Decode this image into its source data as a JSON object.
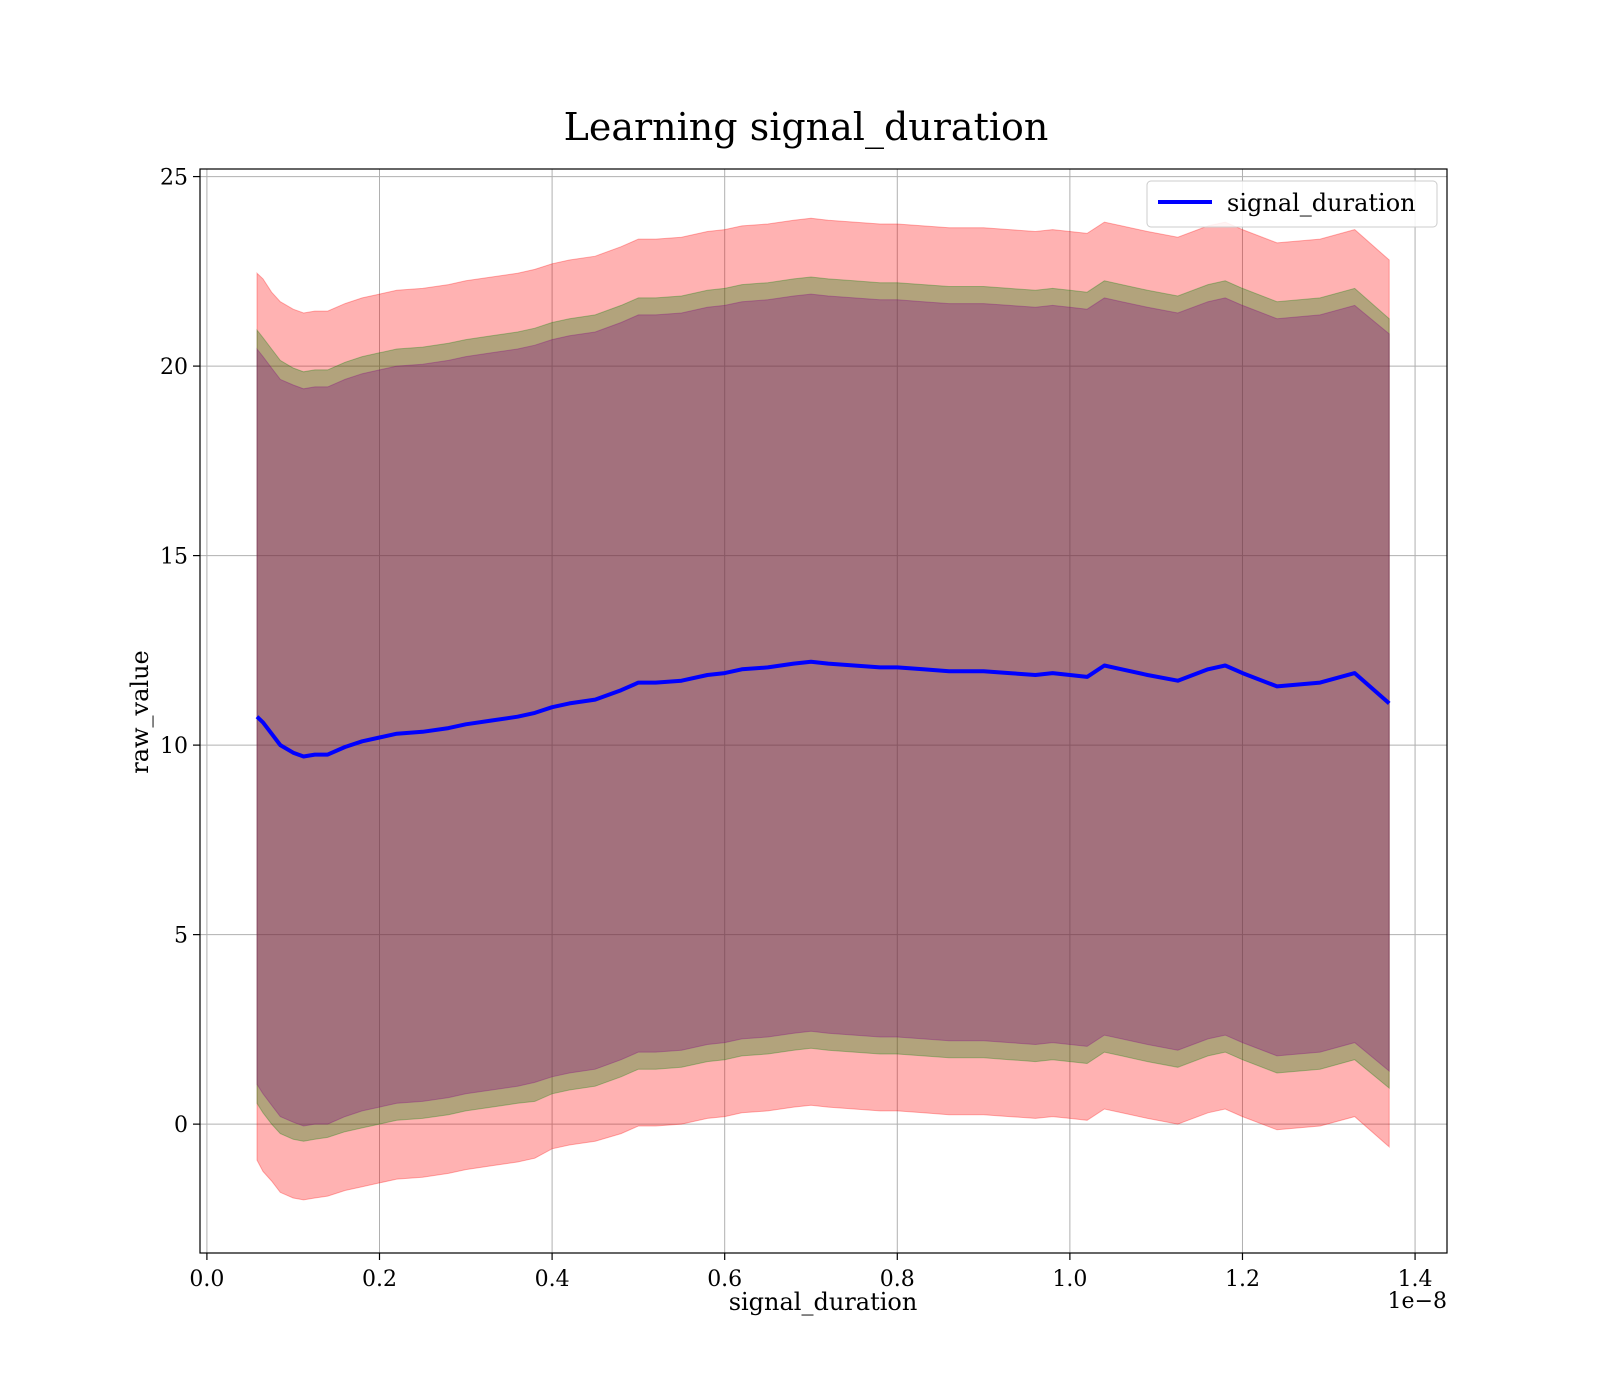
{
  "chart_data": {
    "type": "line",
    "title": "Learning signal_duration",
    "xlabel": "signal_duration",
    "ylabel": "raw_value",
    "x_offset_text": "1e−8",
    "xlim": [
      -0.008,
      1.437
    ],
    "ylim": [
      -3.4,
      25.2
    ],
    "xticks": [
      0.0,
      0.2,
      0.4,
      0.6,
      0.8,
      1.0,
      1.2,
      1.4
    ],
    "xtick_labels": [
      "0.0",
      "0.2",
      "0.4",
      "0.6",
      "0.8",
      "1.0",
      "1.2",
      "1.4"
    ],
    "yticks": [
      0,
      5,
      10,
      15,
      20,
      25
    ],
    "ytick_labels": [
      "0",
      "5",
      "10",
      "15",
      "20",
      "25"
    ],
    "grid": true,
    "legend": {
      "position": "top-right",
      "entries": [
        "signal_duration"
      ]
    },
    "series": [
      {
        "name": "signal_duration",
        "color": "#0000ff",
        "x": [
          0.058,
          0.065,
          0.075,
          0.085,
          0.1,
          0.112,
          0.125,
          0.14,
          0.16,
          0.18,
          0.2,
          0.22,
          0.25,
          0.28,
          0.3,
          0.33,
          0.36,
          0.38,
          0.4,
          0.42,
          0.45,
          0.48,
          0.5,
          0.52,
          0.55,
          0.58,
          0.6,
          0.62,
          0.65,
          0.68,
          0.7,
          0.72,
          0.75,
          0.78,
          0.8,
          0.83,
          0.86,
          0.9,
          0.93,
          0.96,
          0.98,
          1.0,
          1.02,
          1.04,
          1.06,
          1.09,
          1.125,
          1.16,
          1.18,
          1.2,
          1.24,
          1.29,
          1.33,
          1.37
        ],
        "values": [
          10.75,
          10.6,
          10.3,
          10.0,
          9.8,
          9.7,
          9.75,
          9.75,
          9.95,
          10.1,
          10.2,
          10.3,
          10.35,
          10.45,
          10.55,
          10.65,
          10.75,
          10.85,
          11.0,
          11.1,
          11.2,
          11.45,
          11.65,
          11.65,
          11.7,
          11.85,
          11.9,
          12.0,
          12.05,
          12.15,
          12.2,
          12.15,
          12.1,
          12.05,
          12.05,
          12.0,
          11.95,
          11.95,
          11.9,
          11.85,
          11.9,
          11.85,
          11.8,
          12.1,
          12.0,
          11.85,
          11.7,
          12.0,
          12.1,
          11.9,
          11.55,
          11.65,
          11.9,
          11.1
        ]
      }
    ],
    "bands": [
      {
        "color": "#ff0000",
        "opacity": 0.3,
        "lower": [
          -0.95,
          -1.25,
          -1.5,
          -1.8,
          -1.95,
          -2.0,
          -1.95,
          -1.9,
          -1.75,
          -1.65,
          -1.55,
          -1.45,
          -1.4,
          -1.3,
          -1.2,
          -1.1,
          -1.0,
          -0.9,
          -0.65,
          -0.55,
          -0.45,
          -0.25,
          -0.05,
          -0.05,
          0.0,
          0.15,
          0.2,
          0.3,
          0.35,
          0.45,
          0.5,
          0.45,
          0.4,
          0.35,
          0.35,
          0.3,
          0.25,
          0.25,
          0.2,
          0.15,
          0.2,
          0.15,
          0.1,
          0.4,
          0.3,
          0.15,
          0.0,
          0.3,
          0.4,
          0.2,
          -0.15,
          -0.05,
          0.2,
          -0.6
        ],
        "upper": [
          22.45,
          22.3,
          21.95,
          21.7,
          21.5,
          21.4,
          21.45,
          21.45,
          21.65,
          21.8,
          21.9,
          22.0,
          22.05,
          22.15,
          22.25,
          22.35,
          22.45,
          22.55,
          22.7,
          22.8,
          22.9,
          23.15,
          23.35,
          23.35,
          23.4,
          23.55,
          23.6,
          23.7,
          23.75,
          23.85,
          23.9,
          23.85,
          23.8,
          23.75,
          23.75,
          23.7,
          23.65,
          23.65,
          23.6,
          23.55,
          23.6,
          23.55,
          23.5,
          23.8,
          23.7,
          23.55,
          23.4,
          23.7,
          23.8,
          23.6,
          23.25,
          23.35,
          23.6,
          22.8
        ]
      },
      {
        "color": "#008000",
        "opacity": 0.3,
        "lower": [
          0.55,
          0.3,
          0.0,
          -0.25,
          -0.4,
          -0.45,
          -0.4,
          -0.35,
          -0.2,
          -0.1,
          0.0,
          0.1,
          0.15,
          0.25,
          0.35,
          0.45,
          0.55,
          0.6,
          0.8,
          0.9,
          1.0,
          1.25,
          1.45,
          1.45,
          1.5,
          1.65,
          1.7,
          1.8,
          1.85,
          1.95,
          2.0,
          1.95,
          1.9,
          1.85,
          1.85,
          1.8,
          1.75,
          1.75,
          1.7,
          1.65,
          1.7,
          1.65,
          1.6,
          1.9,
          1.8,
          1.65,
          1.5,
          1.8,
          1.9,
          1.7,
          1.35,
          1.45,
          1.7,
          0.95
        ],
        "upper": [
          20.95,
          20.75,
          20.45,
          20.15,
          19.95,
          19.85,
          19.9,
          19.9,
          20.1,
          20.25,
          20.35,
          20.45,
          20.5,
          20.6,
          20.7,
          20.8,
          20.9,
          21.0,
          21.15,
          21.25,
          21.35,
          21.6,
          21.8,
          21.8,
          21.85,
          22.0,
          22.05,
          22.15,
          22.2,
          22.3,
          22.35,
          22.3,
          22.25,
          22.2,
          22.2,
          22.15,
          22.1,
          22.1,
          22.05,
          22.0,
          22.05,
          22.0,
          21.95,
          22.25,
          22.15,
          22.0,
          21.85,
          22.15,
          22.25,
          22.05,
          21.7,
          21.8,
          22.05,
          21.25
        ]
      },
      {
        "color": "#800080",
        "opacity": 0.3,
        "lower": [
          1.05,
          0.8,
          0.5,
          0.2,
          0.05,
          -0.05,
          0.0,
          0.0,
          0.2,
          0.35,
          0.45,
          0.55,
          0.6,
          0.7,
          0.8,
          0.9,
          1.0,
          1.1,
          1.25,
          1.35,
          1.45,
          1.7,
          1.9,
          1.9,
          1.95,
          2.1,
          2.15,
          2.25,
          2.3,
          2.4,
          2.45,
          2.4,
          2.35,
          2.3,
          2.3,
          2.25,
          2.2,
          2.2,
          2.15,
          2.1,
          2.15,
          2.1,
          2.05,
          2.35,
          2.25,
          2.1,
          1.95,
          2.25,
          2.35,
          2.15,
          1.8,
          1.9,
          2.15,
          1.4
        ],
        "upper": [
          20.45,
          20.25,
          19.95,
          19.65,
          19.5,
          19.4,
          19.45,
          19.45,
          19.65,
          19.8,
          19.9,
          20.0,
          20.05,
          20.15,
          20.25,
          20.35,
          20.45,
          20.55,
          20.7,
          20.8,
          20.9,
          21.15,
          21.35,
          21.35,
          21.4,
          21.55,
          21.6,
          21.7,
          21.75,
          21.85,
          21.9,
          21.85,
          21.8,
          21.75,
          21.75,
          21.7,
          21.65,
          21.65,
          21.6,
          21.55,
          21.6,
          21.55,
          21.5,
          21.8,
          21.7,
          21.55,
          21.4,
          21.7,
          21.8,
          21.6,
          21.25,
          21.35,
          21.6,
          20.85
        ]
      }
    ]
  }
}
